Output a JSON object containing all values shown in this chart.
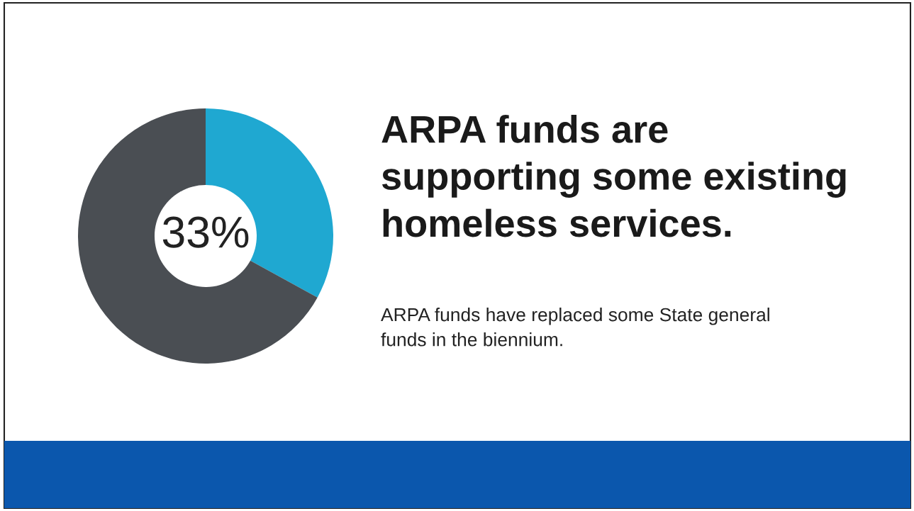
{
  "chart_data": {
    "type": "donut",
    "title": "ARPA funds are supporting some existing homeless services.",
    "subtitle": "ARPA funds have replaced some State general funds in the biennium.",
    "categories": [
      null,
      null
    ],
    "values": [
      33,
      67
    ],
    "colors": [
      "#1fa8d1",
      "#4a4e53"
    ],
    "value_labels": [
      "33%",
      null
    ]
  }
}
